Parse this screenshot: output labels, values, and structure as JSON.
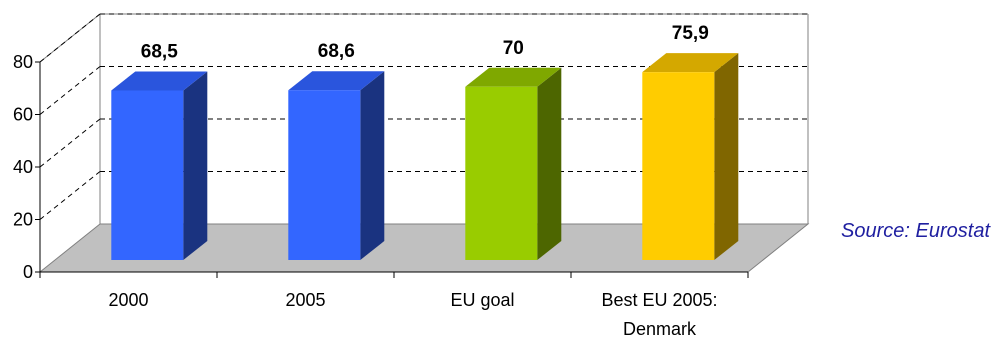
{
  "chart_data": {
    "type": "bar",
    "categories": [
      "2000",
      "2005",
      "EU goal",
      "Best EU 2005:\nDenmark"
    ],
    "values": [
      68.5,
      68.6,
      70,
      75.9
    ],
    "data_labels": [
      "68,5",
      "68,6",
      "70",
      "75,9"
    ],
    "ylim": [
      0,
      80
    ],
    "yticks": [
      "0",
      "20",
      "40",
      "60",
      "80"
    ],
    "grid": "horizontal-dashed",
    "colors": {
      "bars_front": [
        "#3366ff",
        "#3366ff",
        "#99cc00",
        "#ffcc00"
      ],
      "bars_side": [
        "#1a3380",
        "#1a3380",
        "#4d6600",
        "#806600"
      ],
      "bars_top": [
        "#2a55dd",
        "#2a55dd",
        "#7fa800",
        "#d4a800"
      ],
      "floor": "#c0c0c0"
    }
  },
  "source_note": "Source: Eurostat"
}
